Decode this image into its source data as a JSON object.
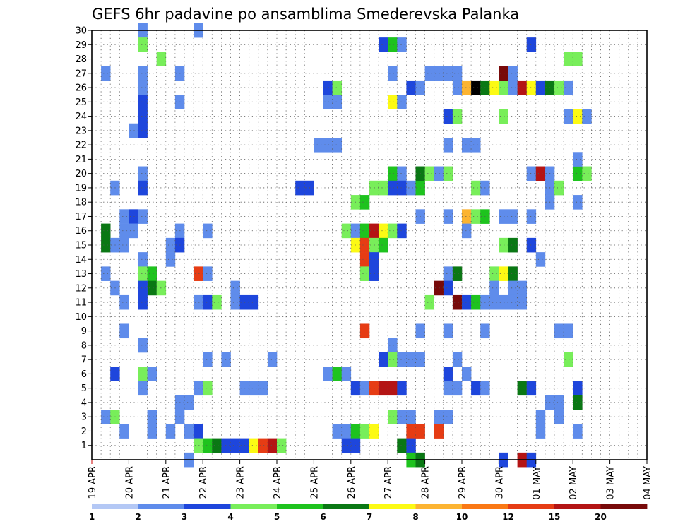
{
  "chart_data": {
    "type": "heatmap",
    "title": "GEFS 6hr padavine po ansamblima Smederevska Palanka",
    "xlabel": "",
    "ylabel": "",
    "x_dates": [
      "19 APR",
      "20 APR",
      "21 APR",
      "22 APR",
      "23 APR",
      "24 APR",
      "25 APR",
      "26 APR",
      "27 APR",
      "28 APR",
      "29 APR",
      "30 APR",
      "01 MAY",
      "02 MAY",
      "03 MAY",
      "04 MAY"
    ],
    "steps_per_day": 4,
    "y_range": [
      0,
      30
    ],
    "y_ticks": [
      1,
      2,
      3,
      4,
      5,
      6,
      7,
      8,
      9,
      10,
      11,
      12,
      13,
      14,
      15,
      16,
      17,
      18,
      19,
      20,
      21,
      22,
      23,
      24,
      25,
      26,
      27,
      28,
      29,
      30
    ],
    "grid": true,
    "legend_position": "bottom",
    "legend_labels": [
      "1",
      "2",
      "3",
      "4",
      "5",
      "6",
      "7",
      "8",
      "10",
      "12",
      "15",
      "20"
    ],
    "colors": [
      "#b4c8f5",
      "#5f8ceb",
      "#1e46dc",
      "#78ee5a",
      "#1ec31e",
      "#0a7814",
      "#fcfa14",
      "#fcb432",
      "#fa7814",
      "#e63c14",
      "#b41414",
      "#780a0a"
    ],
    "cells": [
      [
        5,
        30,
        1
      ],
      [
        5,
        29,
        3
      ],
      [
        7,
        28,
        3
      ],
      [
        5,
        27,
        1
      ],
      [
        5,
        26,
        1
      ],
      [
        5,
        25,
        2
      ],
      [
        5,
        24,
        2
      ],
      [
        4,
        23,
        1
      ],
      [
        5,
        23,
        2
      ],
      [
        5,
        20,
        1
      ],
      [
        5,
        19,
        2
      ],
      [
        5,
        17,
        1
      ],
      [
        5,
        14,
        1
      ],
      [
        5,
        13,
        3
      ],
      [
        6,
        13,
        4
      ],
      [
        6,
        12,
        5
      ],
      [
        7,
        12,
        3
      ],
      [
        5,
        12,
        2
      ],
      [
        5,
        11,
        2
      ],
      [
        5,
        8,
        1
      ],
      [
        5,
        6,
        3
      ],
      [
        6,
        6,
        1
      ],
      [
        5,
        5,
        1
      ],
      [
        6,
        3,
        1
      ],
      [
        6,
        2,
        1
      ],
      [
        1,
        27,
        1
      ],
      [
        1,
        16,
        5
      ],
      [
        1,
        15,
        5
      ],
      [
        1,
        13,
        1
      ],
      [
        1,
        3,
        1
      ],
      [
        2,
        19,
        1
      ],
      [
        2,
        15,
        1
      ],
      [
        2,
        12,
        1
      ],
      [
        2,
        6,
        2
      ],
      [
        2,
        3,
        3
      ],
      [
        3,
        16,
        1
      ],
      [
        3,
        15,
        1
      ],
      [
        3,
        17,
        1
      ],
      [
        3,
        11,
        1
      ],
      [
        3,
        9,
        1
      ],
      [
        3,
        2,
        1
      ],
      [
        4,
        17,
        2
      ],
      [
        4,
        16,
        1
      ],
      [
        8,
        14,
        1
      ],
      [
        8,
        15,
        1
      ],
      [
        8,
        2,
        1
      ],
      [
        9,
        27,
        1
      ],
      [
        9,
        25,
        1
      ],
      [
        9,
        16,
        1
      ],
      [
        9,
        15,
        2
      ],
      [
        9,
        4,
        1
      ],
      [
        9,
        3,
        1
      ],
      [
        10,
        4,
        1
      ],
      [
        10,
        2,
        1
      ],
      [
        11,
        2,
        2
      ],
      [
        11,
        1,
        3
      ],
      [
        10,
        0,
        1
      ],
      [
        12,
        1,
        4
      ],
      [
        13,
        1,
        5
      ],
      [
        14,
        1,
        2
      ],
      [
        15,
        1,
        2
      ],
      [
        16,
        1,
        2
      ],
      [
        17,
        1,
        6
      ],
      [
        18,
        1,
        9
      ],
      [
        19,
        1,
        10
      ],
      [
        20,
        1,
        3
      ],
      [
        11,
        5,
        1
      ],
      [
        12,
        5,
        3
      ],
      [
        11,
        11,
        1
      ],
      [
        12,
        11,
        2
      ],
      [
        13,
        11,
        3
      ],
      [
        12,
        7,
        1
      ],
      [
        14,
        7,
        1
      ],
      [
        11,
        30,
        1
      ],
      [
        11,
        13,
        9
      ],
      [
        12,
        13,
        1
      ],
      [
        12,
        16,
        1
      ],
      [
        15,
        12,
        1
      ],
      [
        15,
        11,
        1
      ],
      [
        16,
        11,
        2
      ],
      [
        17,
        11,
        2
      ],
      [
        16,
        5,
        1
      ],
      [
        17,
        5,
        1
      ],
      [
        18,
        5,
        1
      ],
      [
        19,
        7,
        1
      ],
      [
        22,
        19,
        2
      ],
      [
        23,
        19,
        2
      ],
      [
        24,
        22,
        1
      ],
      [
        25,
        22,
        1
      ],
      [
        26,
        22,
        1
      ],
      [
        25,
        26,
        2
      ],
      [
        26,
        26,
        3
      ],
      [
        25,
        25,
        1
      ],
      [
        26,
        25,
        1
      ],
      [
        25,
        6,
        1
      ],
      [
        26,
        6,
        4
      ],
      [
        27,
        6,
        1
      ],
      [
        26,
        2,
        1
      ],
      [
        27,
        2,
        1
      ],
      [
        28,
        2,
        4
      ],
      [
        29,
        2,
        3
      ],
      [
        30,
        2,
        6
      ],
      [
        27,
        1,
        2
      ],
      [
        28,
        1,
        2
      ],
      [
        28,
        18,
        3
      ],
      [
        29,
        18,
        4
      ],
      [
        27,
        16,
        3
      ],
      [
        28,
        16,
        1
      ],
      [
        29,
        16,
        4
      ],
      [
        30,
        16,
        10
      ],
      [
        31,
        16,
        6
      ],
      [
        32,
        16,
        3
      ],
      [
        33,
        16,
        2
      ],
      [
        28,
        15,
        6
      ],
      [
        29,
        15,
        9
      ],
      [
        30,
        15,
        3
      ],
      [
        31,
        15,
        4
      ],
      [
        29,
        14,
        9
      ],
      [
        30,
        14,
        2
      ],
      [
        29,
        13,
        3
      ],
      [
        30,
        13,
        2
      ],
      [
        29,
        9,
        9
      ],
      [
        28,
        5,
        2
      ],
      [
        29,
        5,
        1
      ],
      [
        30,
        5,
        9
      ],
      [
        31,
        5,
        10
      ],
      [
        32,
        5,
        10
      ],
      [
        33,
        5,
        2
      ],
      [
        31,
        29,
        2
      ],
      [
        32,
        29,
        4
      ],
      [
        33,
        29,
        1
      ],
      [
        32,
        27,
        1
      ],
      [
        32,
        25,
        6
      ],
      [
        33,
        25,
        1
      ],
      [
        32,
        20,
        4
      ],
      [
        33,
        20,
        1
      ],
      [
        30,
        19,
        3
      ],
      [
        31,
        19,
        3
      ],
      [
        32,
        19,
        2
      ],
      [
        33,
        19,
        2
      ],
      [
        34,
        19,
        1
      ],
      [
        35,
        19,
        4
      ],
      [
        32,
        8,
        1
      ],
      [
        31,
        7,
        2
      ],
      [
        32,
        7,
        3
      ],
      [
        33,
        7,
        1
      ],
      [
        34,
        7,
        1
      ],
      [
        35,
        7,
        1
      ],
      [
        32,
        3,
        3
      ],
      [
        33,
        3,
        1
      ],
      [
        34,
        2,
        9
      ],
      [
        33,
        1,
        5
      ],
      [
        34,
        1,
        2
      ],
      [
        34,
        0,
        4
      ],
      [
        35,
        0,
        5
      ],
      [
        34,
        26,
        2
      ],
      [
        35,
        26,
        1
      ],
      [
        35,
        20,
        5
      ],
      [
        36,
        20,
        3
      ],
      [
        37,
        20,
        1
      ],
      [
        38,
        20,
        3
      ],
      [
        35,
        17,
        1
      ],
      [
        36,
        27,
        1
      ],
      [
        37,
        27,
        1
      ],
      [
        36,
        11,
        3
      ],
      [
        35,
        9,
        1
      ],
      [
        38,
        9,
        1
      ],
      [
        38,
        6,
        2
      ],
      [
        38,
        13,
        1
      ],
      [
        38,
        12,
        2
      ],
      [
        37,
        12,
        11
      ],
      [
        39,
        11,
        11
      ],
      [
        40,
        11,
        2
      ],
      [
        41,
        11,
        4
      ],
      [
        42,
        11,
        1
      ],
      [
        43,
        11,
        1
      ],
      [
        44,
        11,
        1
      ],
      [
        37,
        2,
        9
      ],
      [
        35,
        2,
        9
      ],
      [
        34,
        3,
        1
      ],
      [
        37,
        3,
        1
      ],
      [
        38,
        3,
        1
      ],
      [
        39,
        13,
        5
      ],
      [
        38,
        24,
        2
      ],
      [
        39,
        24,
        3
      ],
      [
        38,
        22,
        1
      ],
      [
        40,
        22,
        1
      ],
      [
        41,
        22,
        1
      ],
      [
        38,
        27,
        1
      ],
      [
        39,
        27,
        1
      ],
      [
        39,
        26,
        1
      ],
      [
        40,
        26,
        7
      ],
      [
        41,
        26,
        12
      ],
      [
        42,
        26,
        5
      ],
      [
        43,
        26,
        6
      ],
      [
        44,
        26,
        3
      ],
      [
        45,
        26,
        1
      ],
      [
        46,
        26,
        10
      ],
      [
        47,
        26,
        6
      ],
      [
        48,
        26,
        2
      ],
      [
        49,
        26,
        5
      ],
      [
        50,
        26,
        3
      ],
      [
        51,
        26,
        1
      ],
      [
        38,
        17,
        1
      ],
      [
        40,
        17,
        7
      ],
      [
        41,
        17,
        3
      ],
      [
        42,
        17,
        4
      ],
      [
        44,
        17,
        1
      ],
      [
        45,
        17,
        1
      ],
      [
        47,
        17,
        1
      ],
      [
        40,
        16,
        1
      ],
      [
        41,
        19,
        3
      ],
      [
        42,
        19,
        1
      ],
      [
        38,
        5,
        1
      ],
      [
        39,
        5,
        1
      ],
      [
        41,
        5,
        2
      ],
      [
        42,
        5,
        1
      ],
      [
        40,
        6,
        1
      ],
      [
        39,
        7,
        1
      ],
      [
        42,
        9,
        1
      ],
      [
        44,
        27,
        11
      ],
      [
        45,
        27,
        1
      ],
      [
        44,
        24,
        3
      ],
      [
        44,
        15,
        3
      ],
      [
        45,
        15,
        5
      ],
      [
        47,
        15,
        2
      ],
      [
        43,
        13,
        3
      ],
      [
        44,
        13,
        6
      ],
      [
        45,
        13,
        5
      ],
      [
        43,
        12,
        1
      ],
      [
        45,
        12,
        1
      ],
      [
        46,
        12,
        1
      ],
      [
        45,
        11,
        1
      ],
      [
        46,
        11,
        1
      ],
      [
        44,
        0,
        2
      ],
      [
        46,
        0,
        10
      ],
      [
        47,
        0,
        2
      ],
      [
        47,
        29,
        2
      ],
      [
        47,
        20,
        1
      ],
      [
        48,
        20,
        10
      ],
      [
        49,
        20,
        1
      ],
      [
        49,
        19,
        1
      ],
      [
        50,
        19,
        3
      ],
      [
        49,
        18,
        1
      ],
      [
        48,
        14,
        1
      ],
      [
        46,
        5,
        5
      ],
      [
        47,
        5,
        2
      ],
      [
        48,
        3,
        1
      ],
      [
        48,
        2,
        1
      ],
      [
        49,
        4,
        1
      ],
      [
        50,
        4,
        1
      ],
      [
        50,
        9,
        1
      ],
      [
        51,
        9,
        1
      ],
      [
        51,
        7,
        3
      ],
      [
        50,
        3,
        1
      ],
      [
        51,
        28,
        3
      ],
      [
        52,
        28,
        3
      ],
      [
        51,
        24,
        1
      ],
      [
        52,
        24,
        6
      ],
      [
        53,
        24,
        1
      ],
      [
        52,
        20,
        4
      ],
      [
        53,
        20,
        3
      ],
      [
        52,
        18,
        1
      ],
      [
        52,
        21,
        1
      ],
      [
        52,
        5,
        2
      ],
      [
        52,
        4,
        5
      ],
      [
        52,
        2,
        1
      ]
    ]
  }
}
